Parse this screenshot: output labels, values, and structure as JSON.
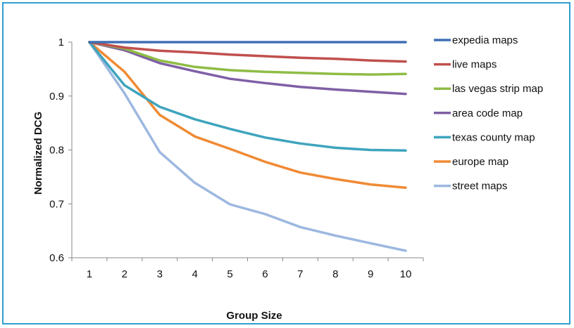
{
  "chart_data": {
    "type": "line",
    "title": "",
    "xlabel": "Group Size",
    "ylabel": "Normalized DCG",
    "x": [
      1,
      2,
      3,
      4,
      5,
      6,
      7,
      8,
      9,
      10
    ],
    "xlim": [
      0.5,
      10.5
    ],
    "ylim": [
      0.6,
      1.0
    ],
    "yticks": [
      "0.6",
      "0.7",
      "0.8",
      "0.9",
      "1"
    ],
    "xticks": [
      "1",
      "2",
      "3",
      "4",
      "5",
      "6",
      "7",
      "8",
      "9",
      "10"
    ],
    "grid": false,
    "legend_position": "right",
    "series": [
      {
        "name": "expedia maps",
        "color": "#3f6fb5",
        "values": [
          1,
          1,
          1,
          1,
          1,
          1,
          1,
          1,
          1,
          1
        ]
      },
      {
        "name": "live maps",
        "color": "#c0504d",
        "values": [
          1,
          0.99,
          0.984,
          0.981,
          0.977,
          0.974,
          0.971,
          0.969,
          0.966,
          0.964
        ]
      },
      {
        "name": "las vegas strip map",
        "color": "#8fbc45",
        "values": [
          1,
          0.988,
          0.966,
          0.954,
          0.948,
          0.945,
          0.943,
          0.941,
          0.94,
          0.941
        ]
      },
      {
        "name": "area code map",
        "color": "#7f5fa6",
        "values": [
          1,
          0.985,
          0.961,
          0.946,
          0.932,
          0.924,
          0.917,
          0.912,
          0.908,
          0.904
        ]
      },
      {
        "name": "texas county map",
        "color": "#3ea4bd",
        "values": [
          1,
          0.92,
          0.88,
          0.857,
          0.839,
          0.823,
          0.812,
          0.804,
          0.8,
          0.799
        ]
      },
      {
        "name": "europe map",
        "color": "#f08a34",
        "values": [
          1,
          0.945,
          0.865,
          0.825,
          0.802,
          0.778,
          0.758,
          0.746,
          0.736,
          0.73
        ]
      },
      {
        "name": "street maps",
        "color": "#9db8e0",
        "values": [
          1,
          0.905,
          0.796,
          0.739,
          0.699,
          0.681,
          0.657,
          0.641,
          0.627,
          0.613
        ]
      }
    ]
  }
}
